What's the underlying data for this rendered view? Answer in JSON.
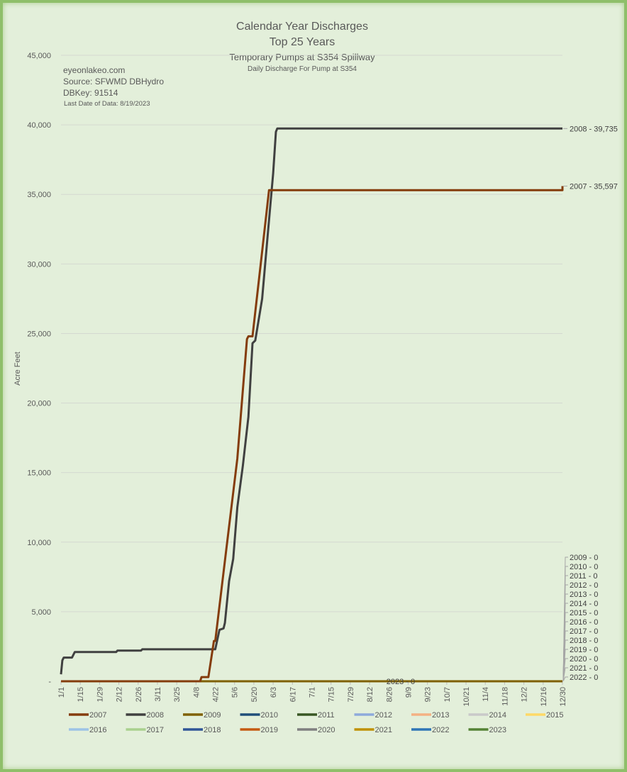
{
  "chart_data": {
    "type": "line",
    "title": "Calendar Year Discharges",
    "title_line2": "Top 25 Years",
    "subtitle": "Temporary Pumps at S354 Spillway",
    "subtitle2": "Daily Discharge For Pump at S354",
    "notes": [
      "eyeonlakeo.com",
      "Source: SFWMD DBHydro",
      "DBKey: 91514",
      "Last Date of Data: 8/19/2023"
    ],
    "ylabel": "Acre Feet",
    "xlabel": "",
    "ylim": [
      0,
      45000
    ],
    "yticks": [
      0,
      5000,
      10000,
      15000,
      20000,
      25000,
      30000,
      35000,
      40000,
      45000
    ],
    "ytick_labels": [
      "-",
      "5,000",
      "10,000",
      "15,000",
      "20,000",
      "25,000",
      "30,000",
      "35,000",
      "40,000",
      "45,000"
    ],
    "xlim_days": [
      0,
      364
    ],
    "xtick_labels": [
      "1/1",
      "1/15",
      "1/29",
      "2/12",
      "2/26",
      "3/11",
      "3/25",
      "4/8",
      "4/22",
      "5/6",
      "5/20",
      "6/3",
      "6/17",
      "7/1",
      "7/15",
      "7/29",
      "8/12",
      "8/26",
      "9/9",
      "9/23",
      "10/7",
      "10/21",
      "11/4",
      "11/18",
      "12/2",
      "12/16",
      "12/30"
    ],
    "grid": true,
    "legend_position": "bottom",
    "series": [
      {
        "name": "2007",
        "color": "#843c0c",
        "points": [
          [
            0,
            0
          ],
          [
            101,
            0
          ],
          [
            102,
            300
          ],
          [
            107,
            300
          ],
          [
            111,
            2900
          ],
          [
            112,
            2900
          ],
          [
            120,
            9500
          ],
          [
            128,
            16000
          ],
          [
            135,
            24600
          ],
          [
            136,
            24800
          ],
          [
            139,
            24800
          ],
          [
            145,
            30000
          ],
          [
            151,
            35300
          ],
          [
            364,
            35300
          ],
          [
            365,
            35597
          ]
        ],
        "end_label": "2007 - 35,597"
      },
      {
        "name": "2008",
        "color": "#404040",
        "points": [
          [
            0,
            500
          ],
          [
            1,
            1500
          ],
          [
            2,
            1700
          ],
          [
            8,
            1700
          ],
          [
            10,
            2100
          ],
          [
            40,
            2100
          ],
          [
            41,
            2200
          ],
          [
            58,
            2200
          ],
          [
            59,
            2300
          ],
          [
            112,
            2300
          ],
          [
            115,
            3700
          ],
          [
            118,
            3800
          ],
          [
            119,
            4200
          ],
          [
            122,
            7200
          ],
          [
            125,
            8800
          ],
          [
            128,
            12500
          ],
          [
            132,
            15500
          ],
          [
            136,
            19000
          ],
          [
            139,
            24300
          ],
          [
            141,
            24500
          ],
          [
            146,
            27500
          ],
          [
            150,
            32000
          ],
          [
            154,
            36500
          ],
          [
            156,
            39500
          ],
          [
            157,
            39735
          ],
          [
            365,
            39735
          ]
        ],
        "end_label": "2008 - 39,735"
      },
      {
        "name": "2009",
        "color": "#7f6000",
        "points": [
          [
            0,
            0
          ],
          [
            365,
            0
          ]
        ],
        "end_label": "2009 - 0"
      },
      {
        "name": "2010",
        "color": "#1f4e79",
        "points": [
          [
            0,
            0
          ],
          [
            365,
            0
          ]
        ],
        "end_label": "2010 - 0"
      },
      {
        "name": "2011",
        "color": "#375623",
        "points": [
          [
            0,
            0
          ],
          [
            365,
            0
          ]
        ],
        "end_label": "2011 - 0"
      },
      {
        "name": "2012",
        "color": "#8eaadb",
        "points": [
          [
            0,
            0
          ],
          [
            365,
            0
          ]
        ],
        "end_label": "2012 - 0"
      },
      {
        "name": "2013",
        "color": "#f4b183",
        "points": [
          [
            0,
            0
          ],
          [
            365,
            0
          ]
        ],
        "end_label": "2013 - 0"
      },
      {
        "name": "2014",
        "color": "#c9c9c9",
        "points": [
          [
            0,
            0
          ],
          [
            365,
            0
          ]
        ],
        "end_label": "2014 - 0"
      },
      {
        "name": "2015",
        "color": "#ffd966",
        "points": [
          [
            0,
            0
          ],
          [
            365,
            0
          ]
        ],
        "end_label": "2015 - 0"
      },
      {
        "name": "2016",
        "color": "#9dc3e6",
        "points": [
          [
            0,
            0
          ],
          [
            365,
            0
          ]
        ],
        "end_label": "2016 - 0"
      },
      {
        "name": "2017",
        "color": "#a9d18e",
        "points": [
          [
            0,
            0
          ],
          [
            365,
            0
          ]
        ],
        "end_label": "2017 - 0"
      },
      {
        "name": "2018",
        "color": "#2f5597",
        "points": [
          [
            0,
            0
          ],
          [
            365,
            0
          ]
        ],
        "end_label": "2018 - 0"
      },
      {
        "name": "2019",
        "color": "#c55a11",
        "points": [
          [
            0,
            0
          ],
          [
            365,
            0
          ]
        ],
        "end_label": "2019 - 0"
      },
      {
        "name": "2020",
        "color": "#7f7f7f",
        "points": [
          [
            0,
            0
          ],
          [
            365,
            0
          ]
        ],
        "end_label": "2020 - 0"
      },
      {
        "name": "2021",
        "color": "#bf9000",
        "points": [
          [
            0,
            0
          ],
          [
            365,
            0
          ]
        ],
        "end_label": "2021 - 0"
      },
      {
        "name": "2022",
        "color": "#2e75b6",
        "points": [
          [
            0,
            0
          ],
          [
            365,
            0
          ]
        ],
        "end_label": "2022 - 0"
      },
      {
        "name": "2023",
        "color": "#548235",
        "points": [
          [
            0,
            0
          ],
          [
            230,
            0
          ]
        ],
        "end_label": "2023 - 0"
      }
    ]
  }
}
